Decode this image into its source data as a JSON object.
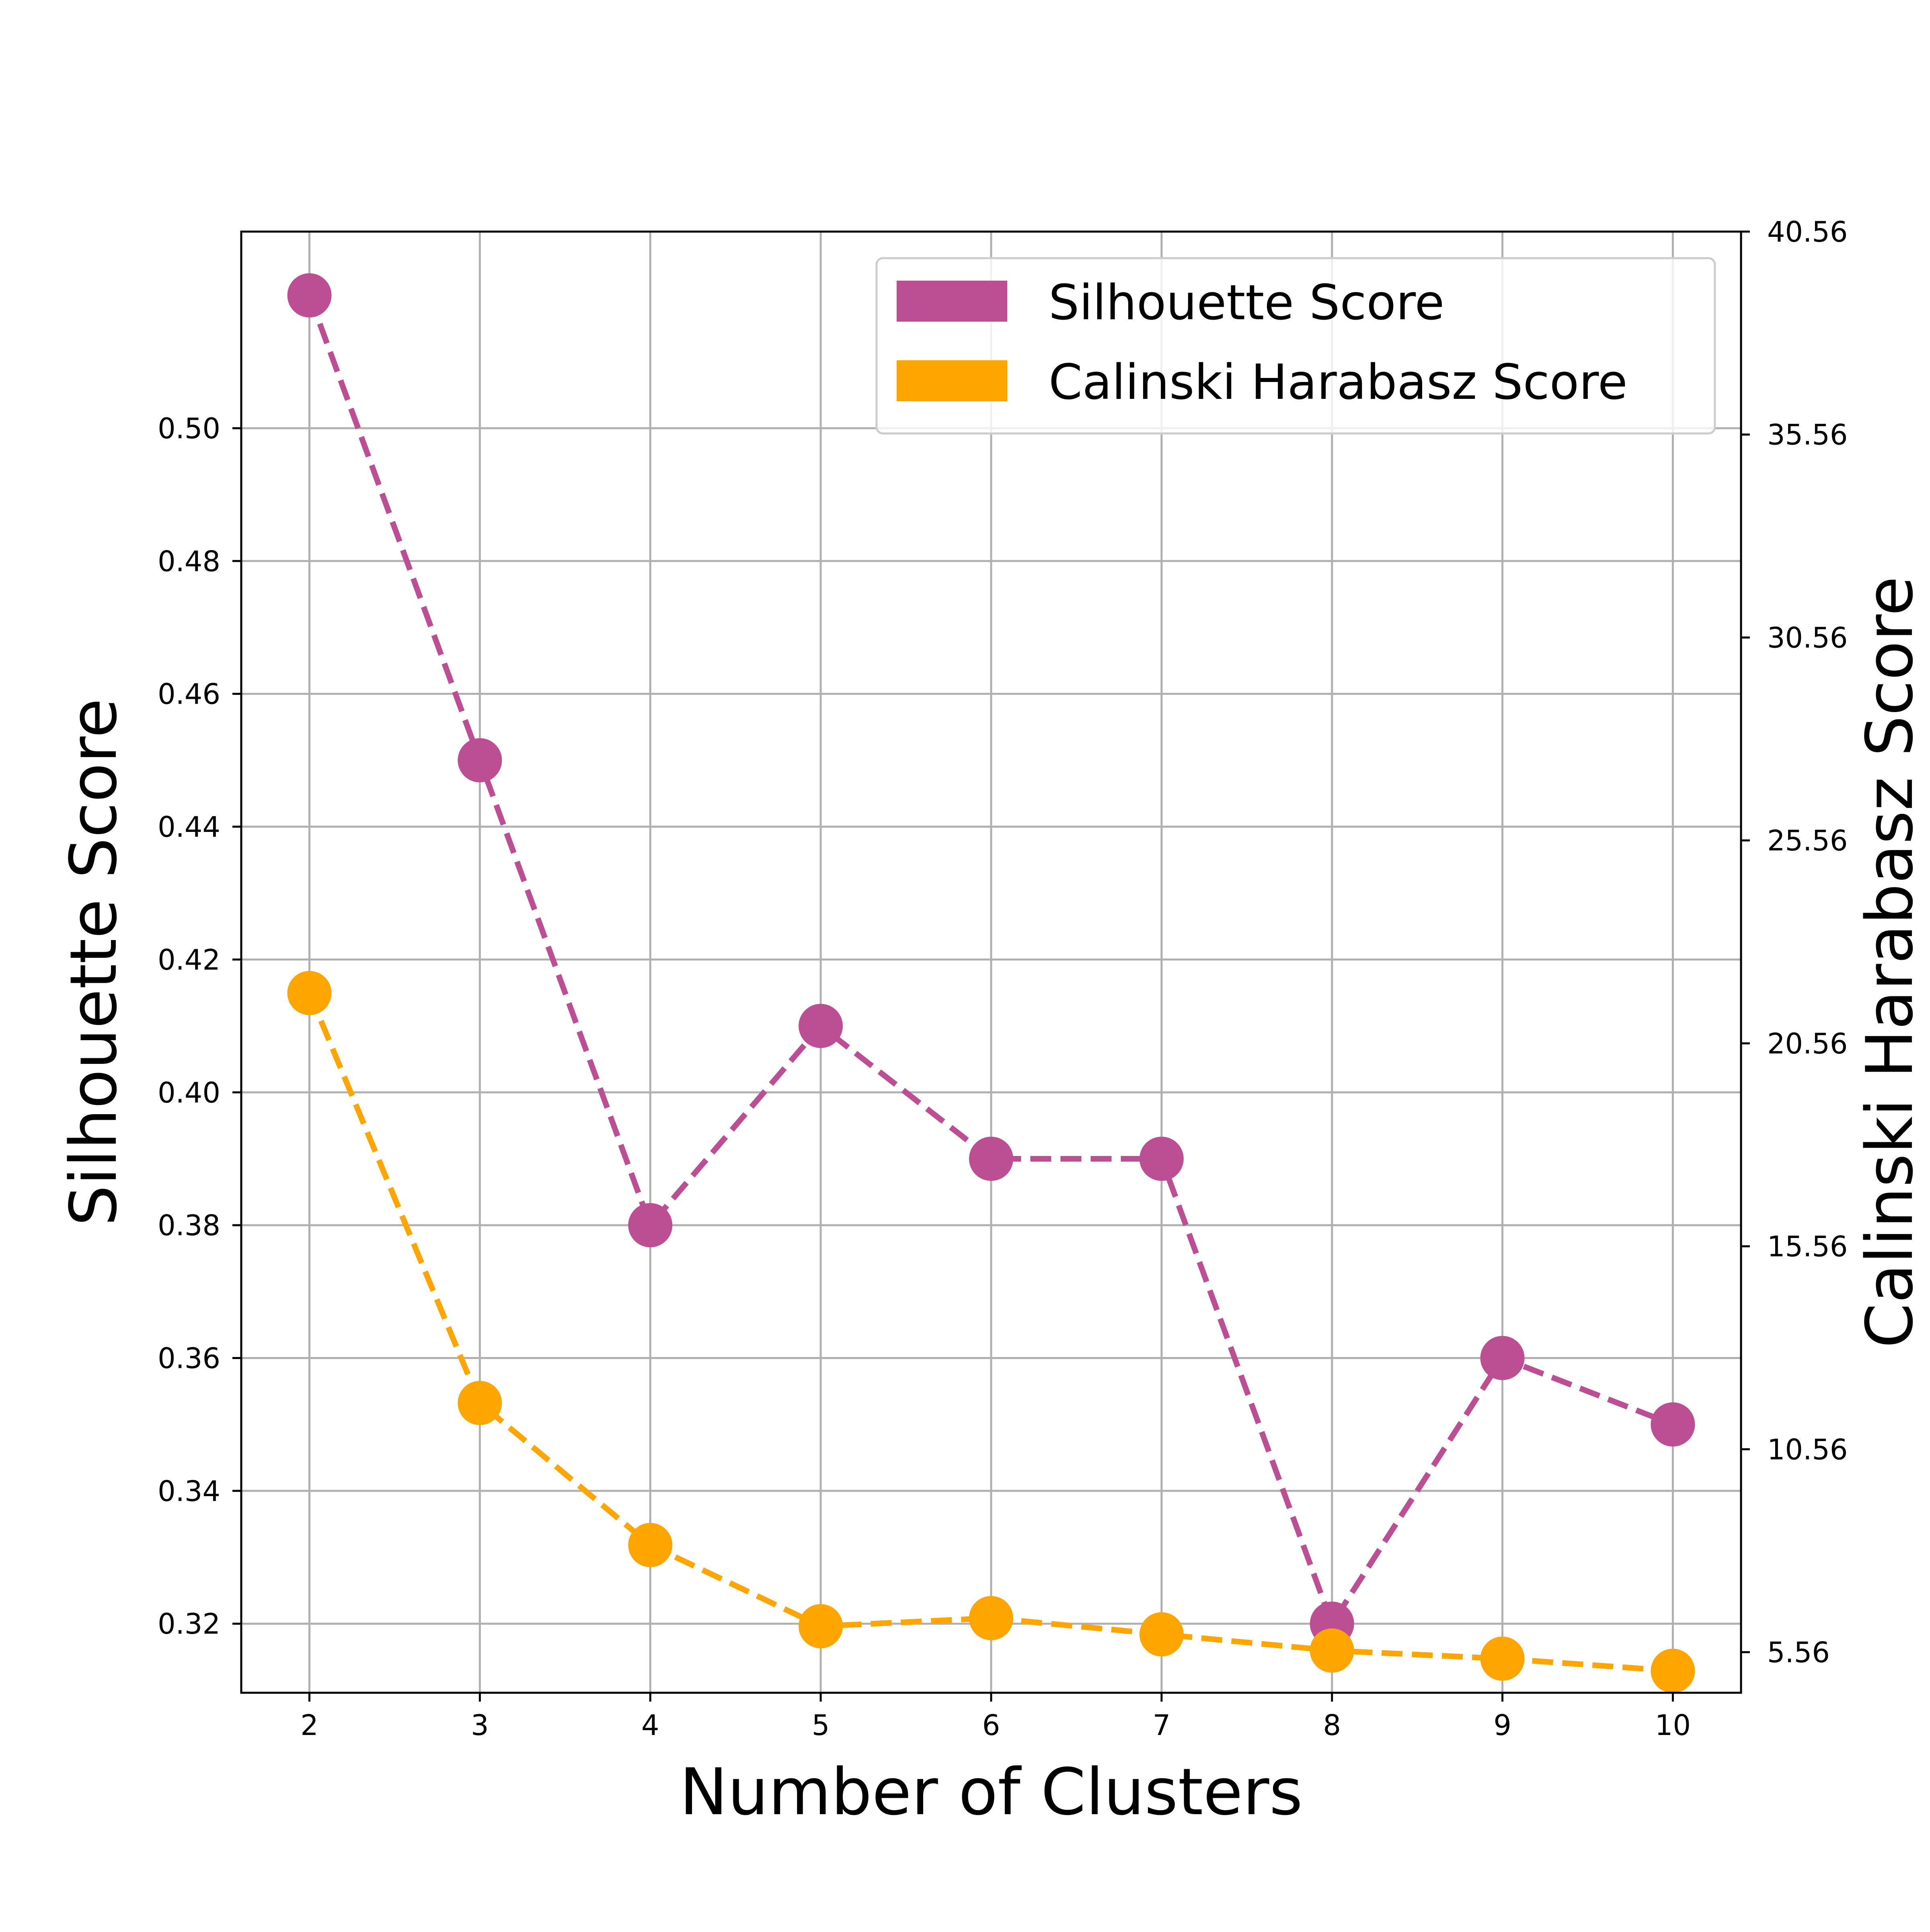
{
  "chart_data": {
    "type": "line",
    "xlabel": "Number of Clusters",
    "ylabel_left": "Silhouette Score",
    "ylabel_right": "Calinski Harabasz Score",
    "x": [
      2,
      3,
      4,
      5,
      6,
      7,
      8,
      9,
      10
    ],
    "xlim": [
      1.6,
      10.4
    ],
    "ylim_left": [
      0.3096,
      0.5296
    ],
    "ylim_right": [
      4.56,
      40.56
    ],
    "yticks_left": [
      "0.32",
      "0.34",
      "0.36",
      "0.38",
      "0.40",
      "0.42",
      "0.44",
      "0.46",
      "0.48",
      "0.50"
    ],
    "yticks_right": [
      "5.56",
      "10.56",
      "15.56",
      "20.56",
      "25.56",
      "30.56",
      "35.56",
      "40.56"
    ],
    "grid": true,
    "legend_position": "top-right",
    "series": [
      {
        "name": "Silhouette Score",
        "axis": "left",
        "color": "#bc4f93",
        "line_style": "dashed",
        "marker": "circle",
        "values": [
          0.52,
          0.45,
          0.38,
          0.41,
          0.39,
          0.39,
          0.32,
          0.36,
          0.35
        ]
      },
      {
        "name": "Calinski Harabasz Score",
        "axis": "right",
        "color": "#ffa500",
        "line_style": "dashed",
        "marker": "circle",
        "values": [
          21.8,
          11.7,
          8.2,
          6.2,
          6.4,
          6.0,
          5.6,
          5.4,
          5.1
        ]
      }
    ]
  }
}
